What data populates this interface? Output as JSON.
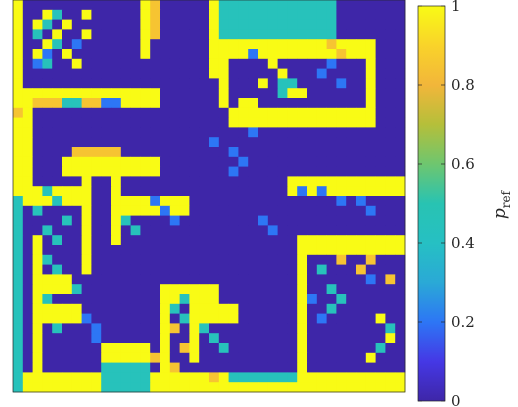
{
  "chart_data": {
    "type": "heatmap",
    "colormap": "parula",
    "grid_size": [
      40,
      40
    ],
    "values_note": "",
    "colorbar": {
      "title_main": "p",
      "title_sub": "ref",
      "ticks": [
        {
          "value": 1,
          "label": "1"
        },
        {
          "value": 0.8,
          "label": "0.8"
        },
        {
          "value": 0.6,
          "label": "0.6"
        },
        {
          "value": 0.4,
          "label": "0.4"
        },
        {
          "value": 0.2,
          "label": "0.2"
        },
        {
          "value": 0,
          "label": "0"
        }
      ],
      "range": [
        0,
        1
      ]
    },
    "colors": {
      "low": "#3e26a8",
      "high": "#f9fb15"
    }
  }
}
